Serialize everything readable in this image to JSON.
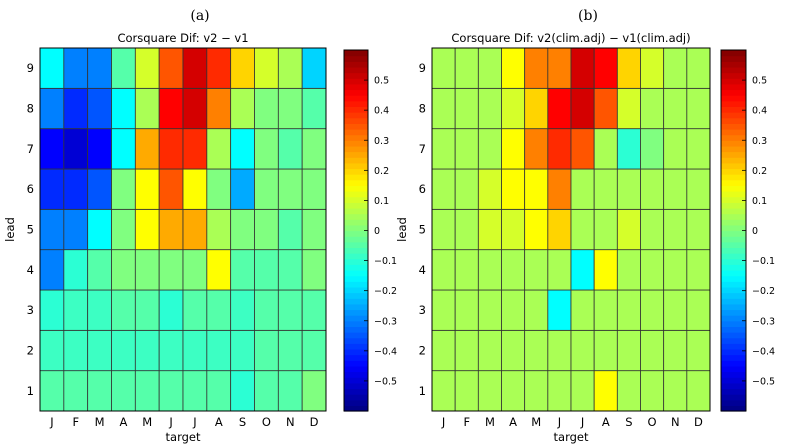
{
  "chart_data": [
    {
      "type": "heatmap",
      "panel_label": "(a)",
      "title": "Corsquare Dif: v2 − v1",
      "xlabel": "target",
      "ylabel": "lead",
      "x_categories": [
        "J",
        "F",
        "M",
        "A",
        "M",
        "J",
        "J",
        "A",
        "S",
        "O",
        "N",
        "D"
      ],
      "y_categories": [
        "1",
        "2",
        "3",
        "4",
        "5",
        "6",
        "7",
        "8",
        "9"
      ],
      "colorbar": {
        "range": [
          -0.6,
          0.6
        ],
        "ticks": [
          -0.5,
          -0.4,
          -0.3,
          -0.2,
          -0.1,
          0,
          0.1,
          0.2,
          0.3,
          0.4,
          0.5
        ],
        "tick_labels": [
          "−0.5",
          "−0.4",
          "−0.3",
          "−0.2",
          "−0.1",
          "0",
          "0.1",
          "0.2",
          "0.3",
          "0.4",
          "0.5"
        ],
        "colormap": "jet"
      },
      "values_by_lead": [
        [
          -0.05,
          -0.05,
          -0.05,
          -0.05,
          -0.05,
          -0.05,
          -0.05,
          -0.05,
          -0.1,
          -0.05,
          -0.05,
          0.0
        ],
        [
          -0.08,
          -0.08,
          -0.08,
          -0.08,
          -0.08,
          -0.08,
          -0.08,
          -0.08,
          -0.08,
          -0.05,
          -0.05,
          -0.05
        ],
        [
          -0.1,
          -0.08,
          -0.08,
          -0.05,
          -0.05,
          -0.1,
          -0.05,
          -0.05,
          -0.08,
          -0.05,
          -0.05,
          -0.05
        ],
        [
          -0.3,
          -0.1,
          -0.05,
          0.0,
          0.0,
          0.0,
          0.0,
          0.15,
          -0.05,
          -0.05,
          -0.05,
          0.0
        ],
        [
          -0.3,
          -0.3,
          -0.15,
          0.0,
          0.15,
          0.25,
          0.25,
          0.05,
          0.0,
          0.0,
          -0.05,
          0.0
        ],
        [
          -0.4,
          -0.4,
          -0.35,
          0.0,
          0.15,
          0.35,
          0.15,
          0.0,
          -0.25,
          0.0,
          0.0,
          0.0
        ],
        [
          -0.45,
          -0.5,
          -0.45,
          -0.15,
          0.25,
          0.4,
          0.4,
          0.05,
          -0.15,
          0.0,
          -0.05,
          0.0
        ],
        [
          -0.3,
          -0.4,
          -0.35,
          -0.15,
          0.05,
          0.45,
          0.5,
          0.3,
          0.05,
          0.0,
          0.0,
          -0.05
        ],
        [
          -0.15,
          -0.3,
          -0.3,
          -0.05,
          0.1,
          0.35,
          0.5,
          0.4,
          0.2,
          0.1,
          0.05,
          -0.2
        ]
      ]
    },
    {
      "type": "heatmap",
      "panel_label": "(b)",
      "title": "Corsquare Dif: v2(clim.adj) − v1(clim.adj)",
      "xlabel": "target",
      "ylabel": "lead",
      "x_categories": [
        "J",
        "F",
        "M",
        "A",
        "M",
        "J",
        "J",
        "A",
        "S",
        "O",
        "N",
        "D"
      ],
      "y_categories": [
        "1",
        "2",
        "3",
        "4",
        "5",
        "6",
        "7",
        "8",
        "9"
      ],
      "colorbar": {
        "range": [
          -0.6,
          0.6
        ],
        "ticks": [
          -0.5,
          -0.4,
          -0.3,
          -0.2,
          -0.1,
          0,
          0.1,
          0.2,
          0.3,
          0.4,
          0.5
        ],
        "tick_labels": [
          "−0.5",
          "−0.4",
          "−0.3",
          "−0.2",
          "−0.1",
          "0",
          "0.1",
          "0.2",
          "0.3",
          "0.4",
          "0.5"
        ],
        "colormap": "jet"
      },
      "values_by_lead": [
        [
          0.05,
          0.05,
          0.05,
          0.05,
          0.05,
          0.05,
          0.05,
          0.15,
          0.05,
          0.05,
          0.05,
          0.05
        ],
        [
          0.05,
          0.05,
          0.05,
          0.05,
          0.05,
          0.05,
          0.05,
          0.05,
          0.05,
          0.05,
          0.05,
          0.05
        ],
        [
          0.05,
          0.05,
          0.05,
          0.05,
          0.05,
          -0.15,
          0.05,
          0.05,
          0.05,
          0.05,
          0.05,
          0.05
        ],
        [
          0.05,
          0.05,
          0.05,
          0.05,
          0.05,
          0.05,
          -0.15,
          0.15,
          0.05,
          0.05,
          0.05,
          0.05
        ],
        [
          0.05,
          0.05,
          0.1,
          0.1,
          0.15,
          0.2,
          0.05,
          0.05,
          0.1,
          0.05,
          0.05,
          0.05
        ],
        [
          0.05,
          0.05,
          0.1,
          0.15,
          0.15,
          0.3,
          0.05,
          0.05,
          0.05,
          0.05,
          0.05,
          0.05
        ],
        [
          0.05,
          0.05,
          0.05,
          0.15,
          0.3,
          0.4,
          0.35,
          0.05,
          -0.1,
          0.0,
          0.05,
          0.05
        ],
        [
          0.05,
          0.05,
          0.05,
          0.1,
          0.2,
          0.45,
          0.5,
          0.35,
          0.1,
          0.05,
          0.05,
          0.05
        ],
        [
          0.05,
          0.05,
          0.05,
          0.15,
          0.3,
          0.3,
          0.5,
          0.45,
          0.2,
          0.1,
          0.05,
          0.05
        ]
      ]
    }
  ]
}
